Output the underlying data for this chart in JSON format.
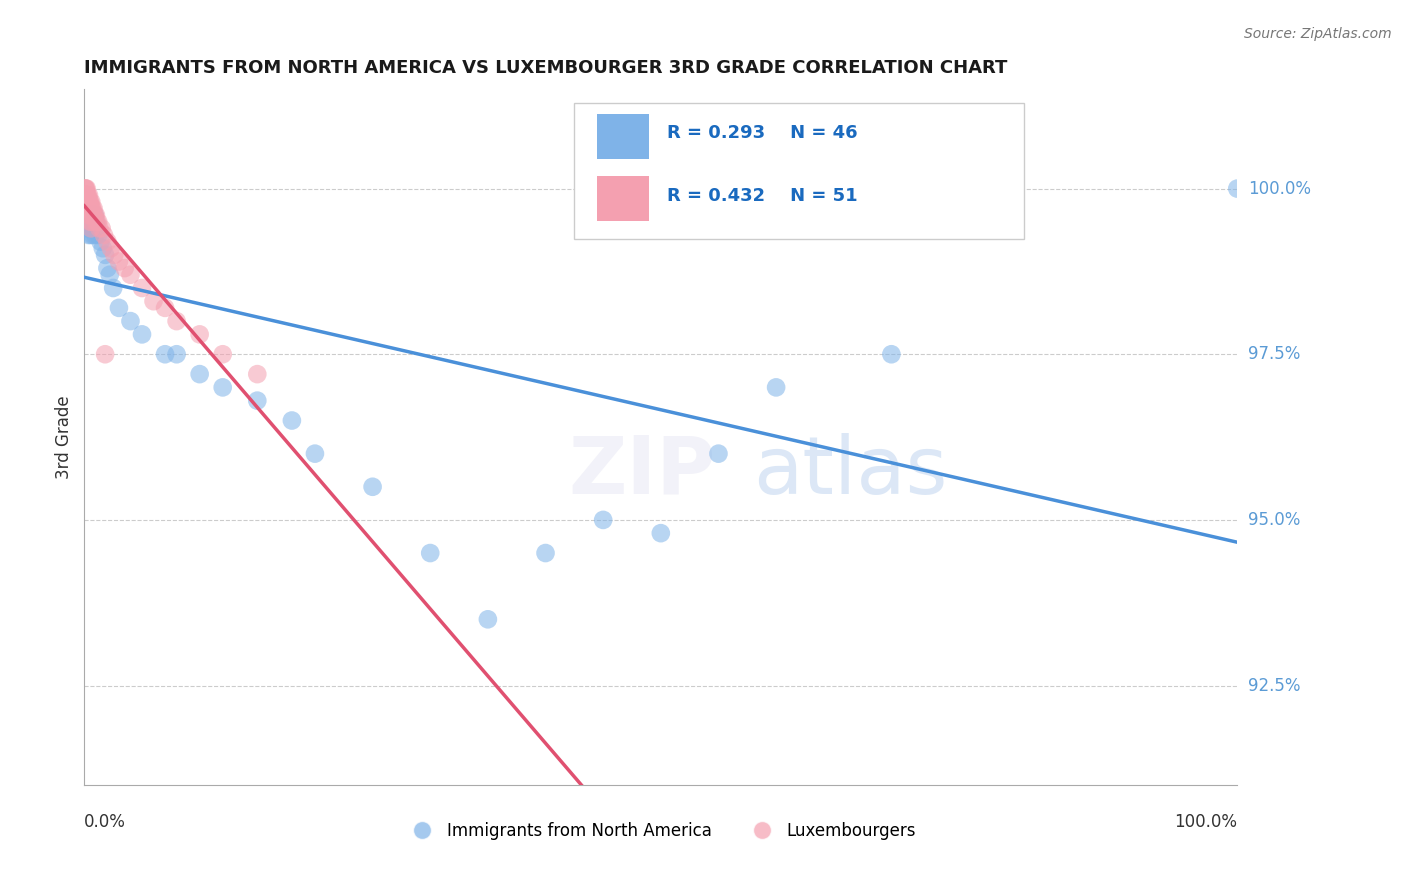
{
  "title": "IMMIGRANTS FROM NORTH AMERICA VS LUXEMBOURGER 3RD GRADE CORRELATION CHART",
  "source": "Source: ZipAtlas.com",
  "ylabel": "3rd Grade",
  "ytick_values": [
    92.5,
    95.0,
    97.5,
    100.0
  ],
  "xlim": [
    0.0,
    100.0
  ],
  "ylim": [
    91.0,
    101.5
  ],
  "legend_blue_label": "Immigrants from North America",
  "legend_pink_label": "Luxembourgers",
  "R_blue": 0.293,
  "N_blue": 46,
  "R_pink": 0.432,
  "N_pink": 51,
  "blue_color": "#7fb3e8",
  "pink_color": "#f4a0b0",
  "blue_line_color": "#4a90d9",
  "pink_line_color": "#e05070",
  "ytick_color": "#5b9bd5",
  "blue_scatter_x": [
    0.15,
    0.2,
    0.25,
    0.3,
    0.35,
    0.4,
    0.45,
    0.5,
    0.55,
    0.6,
    0.65,
    0.7,
    0.75,
    0.8,
    0.85,
    0.9,
    0.95,
    1.0,
    1.1,
    1.2,
    1.4,
    1.6,
    1.8,
    2.0,
    2.2,
    2.5,
    3.0,
    4.0,
    5.0,
    7.0,
    8.0,
    10.0,
    12.0,
    15.0,
    18.0,
    20.0,
    25.0,
    30.0,
    35.0,
    40.0,
    45.0,
    50.0,
    55.0,
    60.0,
    70.0,
    100.0
  ],
  "blue_scatter_y": [
    99.5,
    99.6,
    99.4,
    99.5,
    99.3,
    99.6,
    99.5,
    99.4,
    99.3,
    99.5,
    99.6,
    99.4,
    99.3,
    99.5,
    99.4,
    99.6,
    99.3,
    99.5,
    99.4,
    99.3,
    99.2,
    99.1,
    99.0,
    98.8,
    98.7,
    98.5,
    98.2,
    98.0,
    97.8,
    97.5,
    97.5,
    97.2,
    97.0,
    96.8,
    96.5,
    96.0,
    95.5,
    94.5,
    93.5,
    94.5,
    95.0,
    94.8,
    96.0,
    97.0,
    97.5,
    100.0
  ],
  "pink_scatter_x": [
    0.05,
    0.1,
    0.15,
    0.2,
    0.25,
    0.3,
    0.35,
    0.4,
    0.45,
    0.5,
    0.55,
    0.6,
    0.65,
    0.7,
    0.75,
    0.8,
    0.85,
    0.9,
    0.95,
    1.0,
    1.1,
    1.2,
    1.3,
    1.5,
    1.7,
    2.0,
    2.3,
    2.6,
    3.0,
    3.5,
    4.0,
    5.0,
    6.0,
    7.0,
    8.0,
    10.0,
    12.0,
    15.0,
    0.08,
    0.12,
    0.18,
    0.22,
    0.28,
    0.32,
    0.38,
    0.42,
    0.48,
    0.52,
    0.58,
    0.62,
    1.8
  ],
  "pink_scatter_y": [
    100.0,
    100.0,
    99.9,
    100.0,
    99.9,
    99.9,
    99.8,
    99.9,
    99.8,
    99.8,
    99.7,
    99.8,
    99.7,
    99.7,
    99.6,
    99.7,
    99.6,
    99.6,
    99.5,
    99.6,
    99.5,
    99.5,
    99.4,
    99.4,
    99.3,
    99.2,
    99.1,
    99.0,
    98.9,
    98.8,
    98.7,
    98.5,
    98.3,
    98.2,
    98.0,
    97.8,
    97.5,
    97.2,
    99.9,
    100.0,
    99.8,
    99.9,
    99.7,
    99.8,
    99.6,
    99.7,
    99.5,
    99.6,
    99.4,
    99.5,
    97.5
  ]
}
